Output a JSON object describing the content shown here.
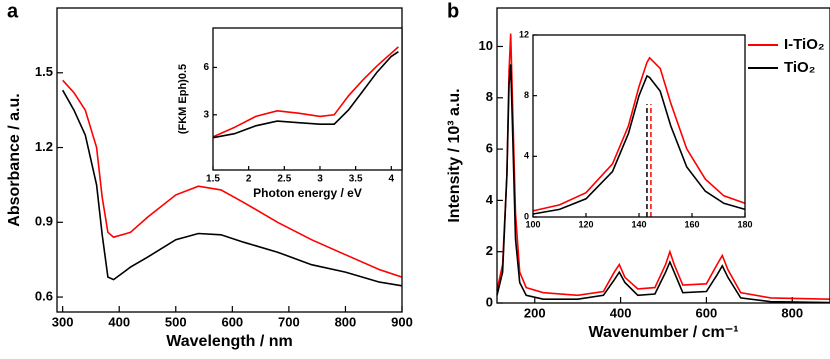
{
  "chart_data": [
    {
      "type": "line",
      "panel": "a",
      "xlabel": "Wavelength / nm",
      "ylabel": "Absorbance / a.u.",
      "xlim": [
        290,
        900
      ],
      "ylim": [
        0.54,
        1.76
      ],
      "xticks": [
        300,
        400,
        500,
        600,
        700,
        800,
        900
      ],
      "yticks": [
        0.6,
        0.9,
        1.2,
        1.5
      ],
      "x": [
        300,
        320,
        340,
        360,
        370,
        380,
        390,
        420,
        450,
        500,
        540,
        580,
        620,
        680,
        740,
        800,
        860,
        900
      ],
      "series": [
        {
          "name": "I-TiO₂",
          "color": "#ff0000",
          "values": [
            1.47,
            1.42,
            1.35,
            1.2,
            1.0,
            0.86,
            0.84,
            0.86,
            0.92,
            1.01,
            1.045,
            1.03,
            0.98,
            0.9,
            0.83,
            0.77,
            0.71,
            0.68
          ]
        },
        {
          "name": "TiO₂",
          "color": "#000000",
          "values": [
            1.43,
            1.35,
            1.25,
            1.05,
            0.85,
            0.68,
            0.67,
            0.72,
            0.76,
            0.83,
            0.855,
            0.85,
            0.82,
            0.78,
            0.73,
            0.7,
            0.66,
            0.645
          ]
        }
      ]
    },
    {
      "type": "line",
      "xlabel": "Photon energy / eV",
      "ylabel": "(FKM Eph)0.5",
      "xlim": [
        1.5,
        4.15
      ],
      "ylim": [
        -0.5,
        8.5
      ],
      "xticks": [
        1.5,
        2.0,
        2.5,
        3.0,
        3.5,
        4.0
      ],
      "yticks": [
        3,
        6
      ],
      "x": [
        1.5,
        1.8,
        2.1,
        2.4,
        2.7,
        3.0,
        3.2,
        3.4,
        3.6,
        3.8,
        4.0,
        4.1
      ],
      "series": [
        {
          "color": "#ff0000",
          "values": [
            1.6,
            2.2,
            2.9,
            3.25,
            3.1,
            2.9,
            3.0,
            4.2,
            5.2,
            6.1,
            6.9,
            7.3
          ]
        },
        {
          "color": "#000000",
          "values": [
            1.55,
            1.8,
            2.3,
            2.6,
            2.5,
            2.4,
            2.4,
            3.3,
            4.5,
            5.7,
            6.7,
            7.0
          ]
        }
      ]
    },
    {
      "type": "line",
      "panel": "b",
      "xlabel": "Wavenumber / cm⁻¹",
      "ylabel": "Intensity / 10³ a.u.",
      "xlim": [
        112,
        888
      ],
      "ylim": [
        0,
        11.5
      ],
      "xticks": [
        200,
        400,
        600,
        800
      ],
      "yticks": [
        0,
        2,
        4,
        6,
        8,
        10
      ],
      "x": [
        112,
        125,
        135,
        140,
        144,
        148,
        155,
        165,
        180,
        220,
        300,
        360,
        385,
        397,
        410,
        440,
        480,
        505,
        515,
        525,
        545,
        600,
        625,
        637,
        650,
        680,
        750,
        888
      ],
      "series": [
        {
          "name": "I-TiO₂",
          "color": "#ff0000",
          "values": [
            0.5,
            1.5,
            5,
            9,
            10.5,
            8,
            3.5,
            1.2,
            0.6,
            0.4,
            0.3,
            0.45,
            1.2,
            1.5,
            1.0,
            0.55,
            0.6,
            1.5,
            2.0,
            1.5,
            0.7,
            0.75,
            1.5,
            1.85,
            1.3,
            0.4,
            0.2,
            0.15
          ]
        },
        {
          "name": "TiO₂",
          "color": "#000000",
          "values": [
            0.3,
            1.2,
            5,
            8.5,
            9.3,
            7,
            2.5,
            0.8,
            0.3,
            0.15,
            0.15,
            0.3,
            0.9,
            1.2,
            0.8,
            0.3,
            0.35,
            1.2,
            1.6,
            1.2,
            0.4,
            0.45,
            1.1,
            1.45,
            1.0,
            0.2,
            0.05,
            0.02
          ]
        }
      ]
    },
    {
      "type": "line",
      "xlim": [
        100,
        180
      ],
      "ylim": [
        0,
        12
      ],
      "xticks": [
        100,
        120,
        140,
        160,
        180
      ],
      "yticks": [
        0,
        4,
        8,
        12
      ],
      "x": [
        100,
        110,
        120,
        130,
        136,
        140,
        143,
        144,
        148,
        152,
        158,
        165,
        172,
        180
      ],
      "series": [
        {
          "color": "#ff0000",
          "values": [
            0.4,
            0.8,
            1.6,
            3.5,
            6,
            8.6,
            10.2,
            10.5,
            9.8,
            7.5,
            4.5,
            2.5,
            1.4,
            0.9
          ]
        },
        {
          "color": "#000000",
          "values": [
            0.2,
            0.5,
            1.2,
            3,
            5.5,
            8,
            9.3,
            9.2,
            8.3,
            6,
            3.3,
            1.7,
            0.9,
            0.5
          ]
        }
      ],
      "vlines": [
        {
          "x": 143,
          "color": "#000000"
        },
        {
          "x": 144.5,
          "color": "#ff0000"
        }
      ]
    }
  ]
}
